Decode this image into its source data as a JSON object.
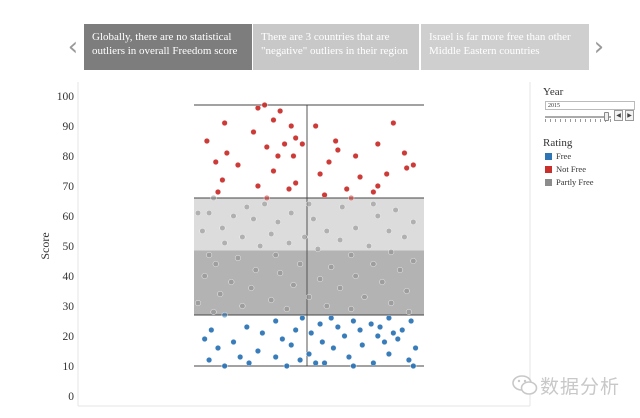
{
  "story": {
    "tabs": [
      {
        "label": "Globally, there are no statistical outliers in overall Freedom score",
        "active": true
      },
      {
        "label": "There are 3 countries that are \"negative\" outliers in their region",
        "active": false
      },
      {
        "label": "Israel is far more free than other Middle Eastern countries",
        "active": false
      }
    ],
    "prev_icon": "chevron-left-icon",
    "next_icon": "chevron-right-icon",
    "prev_glyph": "‹",
    "next_glyph": "›"
  },
  "filters": {
    "year_title": "Year",
    "year_value": "2015",
    "slider_level": 0.95,
    "step_prev_glyph": "◀",
    "step_next_glyph": "▶",
    "rating_title": "Rating",
    "legend": [
      {
        "label": "Free",
        "color": "#2e75b6"
      },
      {
        "label": "Not Free",
        "color": "#c9302c"
      },
      {
        "label": "Partly Free",
        "color": "#8c8c8c"
      }
    ]
  },
  "chart_data": {
    "type": "scatter",
    "ylabel": "Score",
    "ylim": [
      0,
      100
    ],
    "yticks": [
      0,
      10,
      20,
      30,
      40,
      50,
      60,
      70,
      80,
      90,
      100
    ],
    "box": {
      "whisker_low": 10,
      "q1": 27,
      "median": 48.5,
      "q3": 66,
      "whisker_high": 97
    },
    "colors": {
      "Free": "#2e75b6",
      "Not Free": "#c9302c",
      "Partly Free": "#8c8c8c"
    },
    "series": [
      {
        "name": "Not Free",
        "points": [
          [
            0.3,
            97
          ],
          [
            0.27,
            96
          ],
          [
            0.37,
            95
          ],
          [
            0.34,
            92
          ],
          [
            0.12,
            91
          ],
          [
            0.88,
            91
          ],
          [
            0.42,
            90
          ],
          [
            0.53,
            90
          ],
          [
            0.25,
            88
          ],
          [
            0.44,
            86
          ],
          [
            0.04,
            85
          ],
          [
            0.62,
            85
          ],
          [
            0.39,
            84
          ],
          [
            0.47,
            84
          ],
          [
            0.81,
            84
          ],
          [
            0.31,
            83
          ],
          [
            0.63,
            82
          ],
          [
            0.13,
            81
          ],
          [
            0.93,
            81
          ],
          [
            0.36,
            80
          ],
          [
            0.71,
            80
          ],
          [
            0.43,
            80
          ],
          [
            0.08,
            78
          ],
          [
            0.59,
            78
          ],
          [
            0.18,
            77
          ],
          [
            0.97,
            77
          ],
          [
            0.94,
            76
          ],
          [
            0.34,
            75
          ],
          [
            0.55,
            74
          ],
          [
            0.85,
            74
          ],
          [
            0.73,
            73
          ],
          [
            0.11,
            72
          ],
          [
            0.44,
            71
          ],
          [
            0.27,
            70
          ],
          [
            0.81,
            70
          ],
          [
            0.41,
            69
          ],
          [
            0.67,
            69
          ],
          [
            0.09,
            68
          ],
          [
            0.79,
            68
          ],
          [
            0.57,
            67
          ],
          [
            0.69,
            66
          ],
          [
            0.31,
            66
          ]
        ]
      },
      {
        "name": "Partly Free",
        "points": [
          [
            0.07,
            66
          ],
          [
            0.3,
            64
          ],
          [
            0.5,
            64
          ],
          [
            0.65,
            63
          ],
          [
            0.79,
            64
          ],
          [
            0.22,
            63
          ],
          [
            0.89,
            62
          ],
          [
            0.0,
            61
          ],
          [
            0.05,
            61
          ],
          [
            0.42,
            61
          ],
          [
            0.16,
            60
          ],
          [
            0.81,
            60
          ],
          [
            0.52,
            59
          ],
          [
            0.25,
            59
          ],
          [
            0.36,
            58
          ],
          [
            0.97,
            58
          ],
          [
            0.11,
            56
          ],
          [
            0.71,
            56
          ],
          [
            0.58,
            55
          ],
          [
            0.02,
            55
          ],
          [
            0.33,
            54
          ],
          [
            0.86,
            55
          ],
          [
            0.48,
            53
          ],
          [
            0.2,
            53
          ],
          [
            0.93,
            53
          ],
          [
            0.64,
            52
          ],
          [
            0.12,
            51
          ],
          [
            0.41,
            51
          ],
          [
            0.77,
            50
          ],
          [
            0.28,
            50
          ],
          [
            0.54,
            49
          ],
          [
            0.05,
            47
          ],
          [
            0.87,
            48
          ],
          [
            0.35,
            47
          ],
          [
            0.69,
            47
          ],
          [
            0.18,
            46
          ],
          [
            0.97,
            45
          ],
          [
            0.46,
            44
          ],
          [
            0.79,
            44
          ],
          [
            0.08,
            44
          ],
          [
            0.6,
            43
          ],
          [
            0.26,
            42
          ],
          [
            0.91,
            42
          ],
          [
            0.37,
            41
          ],
          [
            0.71,
            40
          ],
          [
            0.03,
            40
          ],
          [
            0.55,
            39
          ],
          [
            0.15,
            38
          ],
          [
            0.83,
            38
          ],
          [
            0.43,
            37
          ],
          [
            0.24,
            36
          ],
          [
            0.64,
            36
          ],
          [
            0.94,
            35
          ],
          [
            0.1,
            34
          ],
          [
            0.5,
            33
          ],
          [
            0.75,
            33
          ],
          [
            0.33,
            32
          ],
          [
            0.0,
            31
          ],
          [
            0.87,
            31
          ],
          [
            0.58,
            30
          ],
          [
            0.2,
            30
          ],
          [
            0.69,
            29
          ],
          [
            0.4,
            29
          ],
          [
            0.95,
            28
          ],
          [
            0.07,
            28
          ]
        ]
      },
      {
        "name": "Free",
        "points": [
          [
            0.12,
            27
          ],
          [
            0.47,
            26
          ],
          [
            0.6,
            26
          ],
          [
            0.86,
            26
          ],
          [
            0.7,
            25
          ],
          [
            0.35,
            25
          ],
          [
            0.96,
            25
          ],
          [
            0.78,
            24
          ],
          [
            0.55,
            24
          ],
          [
            0.22,
            23
          ],
          [
            0.82,
            23
          ],
          [
            0.63,
            23
          ],
          [
            0.92,
            22
          ],
          [
            0.06,
            22
          ],
          [
            0.44,
            22
          ],
          [
            0.73,
            22
          ],
          [
            0.88,
            21
          ],
          [
            0.29,
            21
          ],
          [
            0.51,
            21
          ],
          [
            0.81,
            20
          ],
          [
            0.66,
            20
          ],
          [
            0.03,
            19
          ],
          [
            0.9,
            19
          ],
          [
            0.38,
            19
          ],
          [
            0.56,
            18
          ],
          [
            0.16,
            18
          ],
          [
            0.84,
            18
          ],
          [
            0.74,
            17
          ],
          [
            0.42,
            17
          ],
          [
            0.09,
            16
          ],
          [
            0.98,
            16
          ],
          [
            0.61,
            16
          ],
          [
            0.27,
            15
          ],
          [
            0.5,
            14
          ],
          [
            0.86,
            14
          ],
          [
            0.19,
            13
          ],
          [
            0.35,
            13
          ],
          [
            0.68,
            13
          ],
          [
            0.05,
            12
          ],
          [
            0.95,
            12
          ],
          [
            0.46,
            12
          ],
          [
            0.57,
            11
          ],
          [
            0.79,
            11
          ],
          [
            0.23,
            11
          ],
          [
            0.4,
            10
          ],
          [
            0.12,
            10
          ],
          [
            0.7,
            10
          ],
          [
            0.97,
            10
          ],
          [
            0.53,
            11
          ]
        ]
      }
    ]
  },
  "watermark": {
    "text": "数据分析",
    "icon": "wechat-icon"
  }
}
